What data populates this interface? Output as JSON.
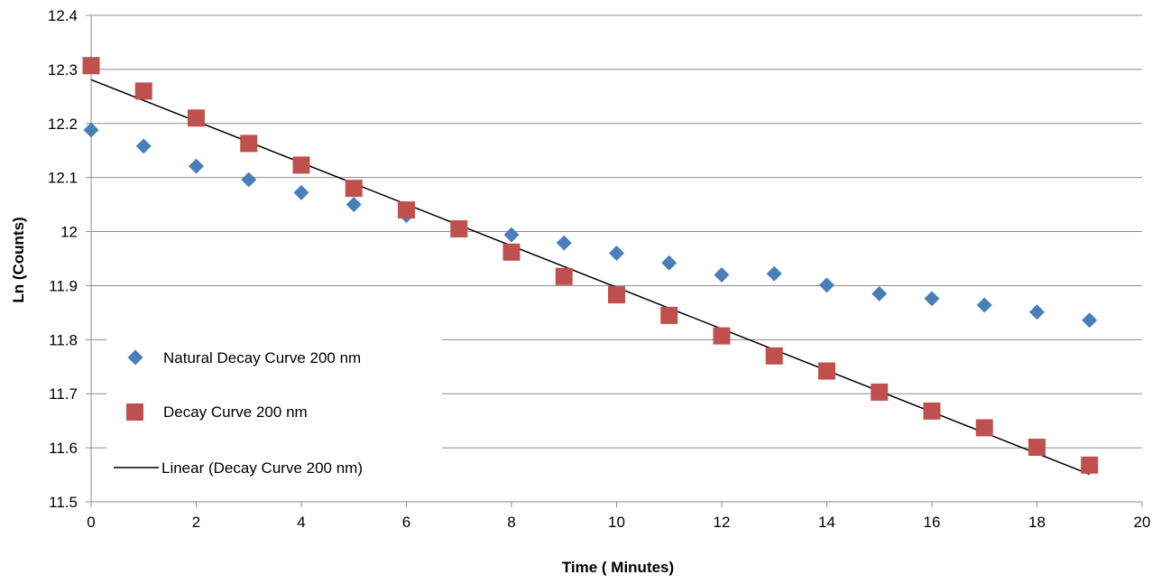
{
  "chart_data": {
    "type": "scatter",
    "title": "",
    "xlabel": "Time ( Minutes)",
    "ylabel": "Ln (Counts)",
    "xlim": [
      0,
      20
    ],
    "ylim": [
      11.5,
      12.4
    ],
    "x_ticks": [
      "0",
      "2",
      "4",
      "6",
      "8",
      "10",
      "12",
      "14",
      "16",
      "18",
      "20"
    ],
    "y_ticks": [
      "11.5",
      "11.6",
      "11.7",
      "11.8",
      "11.9",
      "12",
      "12.1",
      "12.2",
      "12.3",
      "12.4"
    ],
    "grid": "horizontal",
    "legend_position": "bottom-left",
    "series": [
      {
        "name": "Natural Decay Curve 200 nm",
        "marker": "diamond",
        "color": "#4a7ebb",
        "x": [
          0,
          1,
          2,
          3,
          4,
          5,
          6,
          7,
          8,
          9,
          10,
          11,
          12,
          13,
          14,
          15,
          16,
          17,
          18,
          19
        ],
        "y": [
          12.188,
          12.158,
          12.121,
          12.096,
          12.072,
          12.05,
          12.03,
          12.004,
          11.994,
          11.979,
          11.96,
          11.942,
          11.92,
          11.922,
          11.901,
          11.885,
          11.876,
          11.864,
          11.851,
          11.836
        ]
      },
      {
        "name": "Decay Curve 200 nm",
        "marker": "square",
        "color": "#c0504d",
        "x": [
          0,
          1,
          2,
          3,
          4,
          5,
          6,
          7,
          8,
          9,
          10,
          11,
          12,
          13,
          14,
          15,
          16,
          17,
          18,
          19
        ],
        "y": [
          12.307,
          12.26,
          12.21,
          12.163,
          12.123,
          12.08,
          12.04,
          12.005,
          11.962,
          11.917,
          11.883,
          11.845,
          11.807,
          11.77,
          11.742,
          11.703,
          11.668,
          11.637,
          11.601,
          11.568
        ]
      }
    ],
    "trendline": {
      "name": "Linear (Decay Curve 200 nm)",
      "color": "#000000",
      "x": [
        0,
        19
      ],
      "y": [
        12.281,
        11.551
      ]
    }
  }
}
